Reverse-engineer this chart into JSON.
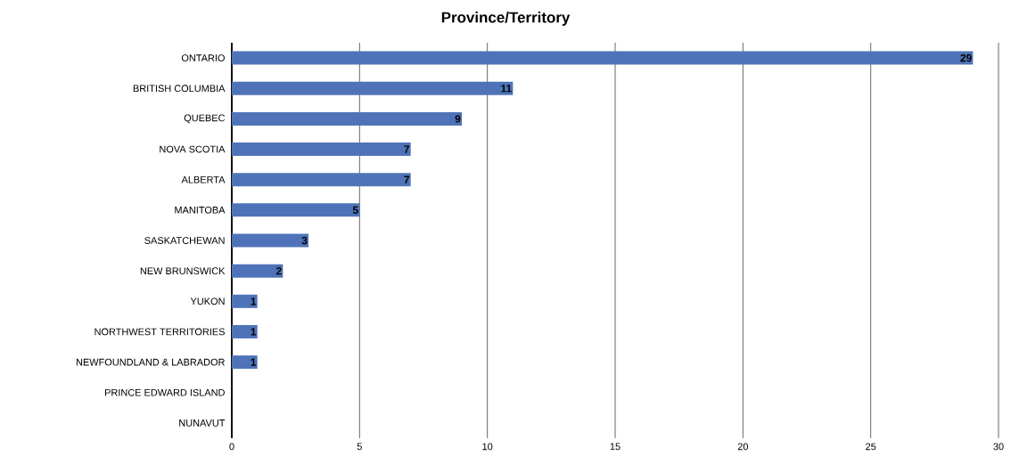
{
  "chart_data": {
    "type": "bar",
    "orientation": "horizontal",
    "title": "Province/Territory",
    "categories": [
      "ONTARIO",
      "BRITISH COLUMBIA",
      "QUEBEC",
      "NOVA SCOTIA",
      "ALBERTA",
      "MANITOBA",
      "SASKATCHEWAN",
      "NEW BRUNSWICK",
      "YUKON",
      "NORTHWEST TERRITORIES",
      "NEWFOUNDLAND & LABRADOR",
      "PRINCE EDWARD ISLAND",
      "NUNAVUT"
    ],
    "values": [
      29,
      11,
      9,
      7,
      7,
      5,
      3,
      2,
      1,
      1,
      1,
      0,
      0
    ],
    "value_labels": [
      "29",
      "11",
      "9",
      "7",
      "7",
      "5",
      "3",
      "2",
      "1",
      "1",
      "1",
      null,
      null
    ],
    "color": "#4f73b8",
    "xlim": [
      0,
      30
    ],
    "xticks": [
      0,
      5,
      10,
      15,
      20,
      25,
      30
    ],
    "grid": "x"
  }
}
